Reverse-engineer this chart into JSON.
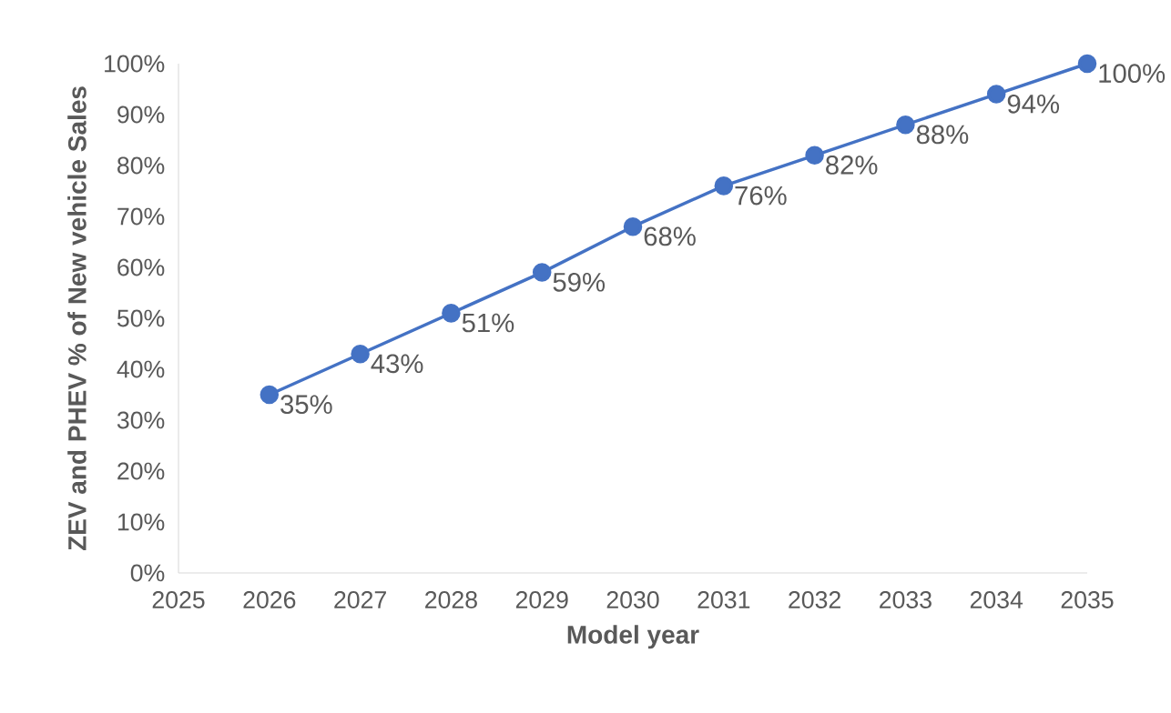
{
  "chart_data": {
    "type": "line",
    "xlabel": "Model year",
    "ylabel": "ZEV and PHEV % of New vehicle Sales",
    "x": [
      2026,
      2027,
      2028,
      2029,
      2030,
      2031,
      2032,
      2033,
      2034,
      2035
    ],
    "series": [
      {
        "color": "#4472c4",
        "values": [
          35,
          43,
          51,
          59,
          68,
          76,
          82,
          88,
          94,
          100
        ],
        "value_labels": [
          "35%",
          "43%",
          "51%",
          "59%",
          "68%",
          "76%",
          "82%",
          "88%",
          "94%",
          "100%"
        ]
      }
    ],
    "xlim": [
      2025,
      2035
    ],
    "xticks": [
      2025,
      2026,
      2027,
      2028,
      2029,
      2030,
      2031,
      2032,
      2033,
      2034,
      2035
    ],
    "ylim": [
      0,
      100
    ],
    "yticks": [
      {
        "value": 0,
        "label": "0%"
      },
      {
        "value": 10,
        "label": "10%"
      },
      {
        "value": 20,
        "label": "20%"
      },
      {
        "value": 30,
        "label": "30%"
      },
      {
        "value": 40,
        "label": "40%"
      },
      {
        "value": 50,
        "label": "50%"
      },
      {
        "value": 60,
        "label": "60%"
      },
      {
        "value": 70,
        "label": "70%"
      },
      {
        "value": 80,
        "label": "80%"
      },
      {
        "value": 90,
        "label": "90%"
      },
      {
        "value": 100,
        "label": "100%"
      }
    ],
    "marker": "circle",
    "line_style": "solid"
  }
}
